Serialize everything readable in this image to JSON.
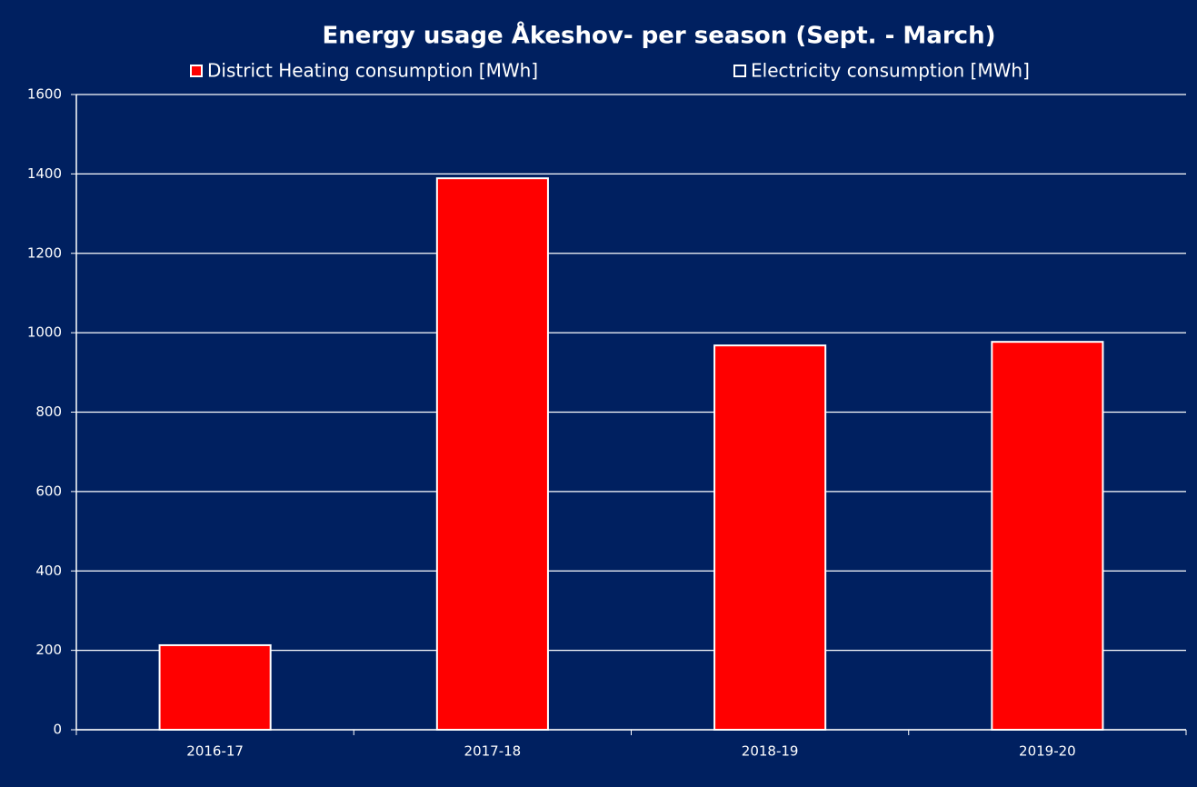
{
  "chart_data": {
    "type": "bar",
    "title": "Energy usage Åkeshov- per season (Sept. - March)",
    "categories": [
      "2016-17",
      "2017-18",
      "2018-19",
      "2019-20"
    ],
    "series": [
      {
        "name": "District Heating consumption [MWh]",
        "color": "#ff0000",
        "values": [
          213,
          1389,
          968,
          977
        ]
      },
      {
        "name": "Electricity consumption [MWh]",
        "color": "#002060",
        "values": [
          null,
          null,
          null,
          null
        ]
      }
    ],
    "ylim": [
      0,
      1600
    ],
    "yticks": [
      0,
      200,
      400,
      600,
      800,
      1000,
      1200,
      1400,
      1600
    ],
    "grid": true,
    "legend": "top"
  }
}
